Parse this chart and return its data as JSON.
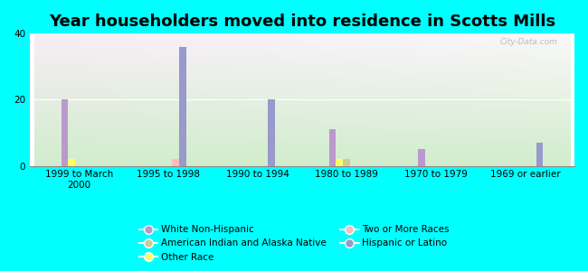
{
  "title": "Year householders moved into residence in Scotts Mills",
  "background_color": "#00FFFF",
  "categories": [
    "1999 to March\n2000",
    "1995 to 1998",
    "1990 to 1994",
    "1980 to 1989",
    "1970 to 1979",
    "1969 or earlier"
  ],
  "series_order": [
    "White Non-Hispanic",
    "Other Race",
    "American Indian and Alaska Native",
    "Two or More Races",
    "Hispanic or Latino"
  ],
  "series": {
    "White Non-Hispanic": {
      "values": [
        20,
        0,
        0,
        11,
        5,
        0
      ],
      "color": "#bb99cc"
    },
    "Other Race": {
      "values": [
        2,
        0,
        0,
        2,
        0,
        0
      ],
      "color": "#ffff66"
    },
    "Hispanic or Latino": {
      "values": [
        0,
        36,
        20,
        0,
        0,
        7
      ],
      "color": "#9999cc"
    },
    "American Indian and Alaska Native": {
      "values": [
        0,
        0,
        0,
        2,
        0,
        0
      ],
      "color": "#cccc99"
    },
    "Two or More Races": {
      "values": [
        0,
        2,
        0,
        0,
        0,
        0
      ],
      "color": "#ffbbbb"
    }
  },
  "legend_order": [
    "White Non-Hispanic",
    "American Indian and Alaska Native",
    "Other Race",
    "Two or More Races",
    "Hispanic or Latino"
  ],
  "ylim": [
    0,
    40
  ],
  "yticks": [
    0,
    20,
    40
  ],
  "bar_width": 0.08,
  "title_fontsize": 13,
  "tick_fontsize": 7.5,
  "legend_fontsize": 7.5,
  "watermark": "City-Data.com"
}
